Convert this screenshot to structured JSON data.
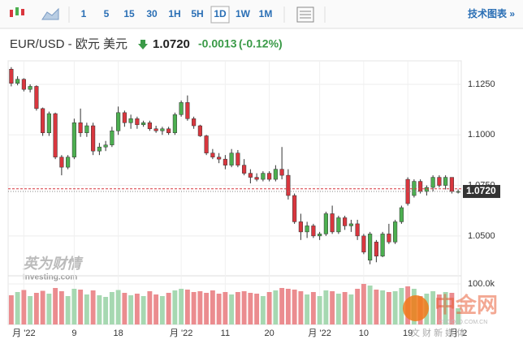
{
  "toolbar": {
    "intervals": [
      "1",
      "5",
      "15",
      "30",
      "1H",
      "5H",
      "1D",
      "1W",
      "1M"
    ],
    "selected": "1D",
    "chart_link": "技术图表 »"
  },
  "header": {
    "symbol": "EUR/USD - 欧元 美元",
    "change": "-0.0013",
    "change_pct": "(-0.12%)"
  },
  "watermarks": {
    "investing_cn": "英为财情",
    "investing": "Investing.com",
    "cngold": "中金网",
    "cngold_url": "CNGOLD.COM.CN",
    "cngold_media": "文 财 新 媒 体"
  },
  "chart_data": {
    "type": "candlestick",
    "up_color": "#4caf50",
    "down_color": "#d9363e",
    "volume_up_color": "#a6d8b1",
    "volume_down_color": "#eb8c8f",
    "ylim": [
      1.0343,
      1.1326
    ],
    "yticks": [
      {
        "value": 1.125,
        "label": "1.1250"
      },
      {
        "value": 1.1,
        "label": "1.1000"
      },
      {
        "value": 1.075,
        "label": "1.0750"
      },
      {
        "value": 1.05,
        "label": "1.0500"
      }
    ],
    "volume_ylim": [
      0,
      110000
    ],
    "volume_yticks": [
      {
        "value": 100000,
        "label": "100.0k"
      }
    ],
    "last": {
      "value": 1.072,
      "label": "1.0720"
    },
    "prev_close": 1.0733,
    "grid": true,
    "categories": [
      null,
      null,
      "月 '22",
      null,
      null,
      null,
      null,
      null,
      null,
      null,
      "9",
      null,
      null,
      null,
      null,
      null,
      null,
      "18",
      null,
      null,
      null,
      null,
      null,
      null,
      null,
      null,
      null,
      "月 '22",
      null,
      null,
      null,
      null,
      null,
      null,
      "11",
      null,
      null,
      null,
      null,
      null,
      null,
      "20",
      null,
      null,
      null,
      null,
      null,
      null,
      null,
      "月 '22",
      null,
      null,
      null,
      null,
      null,
      null,
      "10",
      null,
      null,
      null,
      null,
      null,
      null,
      "19",
      null,
      null,
      null,
      null,
      null,
      null,
      null,
      "月 '2"
    ],
    "ohlc": [
      [
        1.1325,
        1.1335,
        1.124,
        1.1255
      ],
      [
        1.1255,
        1.129,
        1.1245,
        1.1275
      ],
      [
        1.1275,
        1.128,
        1.1215,
        1.1225
      ],
      [
        1.1225,
        1.125,
        1.121,
        1.124
      ],
      [
        1.124,
        1.1245,
        1.112,
        1.113
      ],
      [
        1.113,
        1.1135,
        1.0995,
        1.101
      ],
      [
        1.101,
        1.1115,
        1.0995,
        1.1105
      ],
      [
        1.1105,
        1.111,
        1.088,
        1.089
      ],
      [
        1.089,
        1.09,
        1.08,
        1.084
      ],
      [
        1.084,
        1.09,
        1.083,
        1.089
      ],
      [
        1.089,
        1.108,
        1.088,
        1.106
      ],
      [
        1.106,
        1.113,
        1.099,
        1.101
      ],
      [
        1.101,
        1.106,
        1.099,
        1.1045
      ],
      [
        1.1045,
        1.106,
        1.09,
        1.092
      ],
      [
        1.092,
        1.096,
        1.09,
        1.094
      ],
      [
        1.094,
        1.097,
        1.092,
        1.095
      ],
      [
        1.095,
        1.104,
        1.094,
        1.102
      ],
      [
        1.102,
        1.114,
        1.1,
        1.111
      ],
      [
        1.111,
        1.112,
        1.104,
        1.106
      ],
      [
        1.106,
        1.11,
        1.103,
        1.108
      ],
      [
        1.108,
        1.109,
        1.103,
        1.105
      ],
      [
        1.105,
        1.107,
        1.104,
        1.106
      ],
      [
        1.106,
        1.107,
        1.102,
        1.103
      ],
      [
        1.103,
        1.1045,
        1.101,
        1.102
      ],
      [
        1.102,
        1.104,
        1.1,
        1.103
      ],
      [
        1.103,
        1.104,
        1.1,
        1.101
      ],
      [
        1.101,
        1.111,
        1.1,
        1.11
      ],
      [
        1.11,
        1.117,
        1.109,
        1.116
      ],
      [
        1.116,
        1.1195,
        1.107,
        1.108
      ],
      [
        1.108,
        1.109,
        1.103,
        1.1045
      ],
      [
        1.1045,
        1.105,
        1.099,
        1.0995
      ],
      [
        1.0995,
        1.1,
        1.09,
        1.091
      ],
      [
        1.091,
        1.093,
        1.088,
        1.089
      ],
      [
        1.089,
        1.091,
        1.086,
        1.088
      ],
      [
        1.088,
        1.09,
        1.083,
        1.085
      ],
      [
        1.085,
        1.093,
        1.084,
        1.091
      ],
      [
        1.091,
        1.0925,
        1.084,
        1.085
      ],
      [
        1.085,
        1.088,
        1.08,
        1.081
      ],
      [
        1.081,
        1.083,
        1.076,
        1.079
      ],
      [
        1.079,
        1.081,
        1.077,
        1.078
      ],
      [
        1.078,
        1.082,
        1.077,
        1.081
      ],
      [
        1.081,
        1.082,
        1.077,
        1.078
      ],
      [
        1.078,
        1.085,
        1.077,
        1.083
      ],
      [
        1.083,
        1.094,
        1.078,
        1.08
      ],
      [
        1.08,
        1.083,
        1.068,
        1.07
      ],
      [
        1.07,
        1.071,
        1.056,
        1.057
      ],
      [
        1.057,
        1.061,
        1.048,
        1.052
      ],
      [
        1.052,
        1.057,
        1.049,
        1.055
      ],
      [
        1.055,
        1.056,
        1.049,
        1.05
      ],
      [
        1.05,
        1.052,
        1.048,
        1.051
      ],
      [
        1.051,
        1.062,
        1.05,
        1.061
      ],
      [
        1.061,
        1.065,
        1.051,
        1.052
      ],
      [
        1.052,
        1.06,
        1.051,
        1.059
      ],
      [
        1.059,
        1.06,
        1.053,
        1.055
      ],
      [
        1.055,
        1.058,
        1.052,
        1.056
      ],
      [
        1.056,
        1.058,
        1.048,
        1.05
      ],
      [
        1.05,
        1.051,
        1.041,
        1.042
      ],
      [
        1.038,
        1.052,
        1.036,
        1.051
      ],
      [
        1.047,
        1.048,
        1.037,
        1.04
      ],
      [
        1.04,
        1.052,
        1.0395,
        1.051
      ],
      [
        1.051,
        1.056,
        1.046,
        1.047
      ],
      [
        1.047,
        1.058,
        1.046,
        1.057
      ],
      [
        1.057,
        1.065,
        1.056,
        1.064
      ],
      [
        1.078,
        1.079,
        1.065,
        1.066
      ],
      [
        1.07,
        1.078,
        1.069,
        1.077
      ],
      [
        1.077,
        1.078,
        1.071,
        1.072
      ],
      [
        1.072,
        1.075,
        1.07,
        1.074
      ],
      [
        1.074,
        1.08,
        1.072,
        1.079
      ],
      [
        1.079,
        1.08,
        1.074,
        1.075
      ],
      [
        1.075,
        1.08,
        1.073,
        1.079
      ],
      [
        1.079,
        1.079,
        1.071,
        1.072
      ],
      [
        1.072,
        1.073,
        1.071,
        1.072
      ]
    ],
    "volume": [
      72000,
      80000,
      85000,
      70000,
      78000,
      83000,
      76000,
      90000,
      82000,
      70000,
      88000,
      86000,
      74000,
      84000,
      72000,
      68000,
      80000,
      85000,
      78000,
      72000,
      76000,
      70000,
      82000,
      74000,
      70000,
      78000,
      84000,
      88000,
      86000,
      80000,
      82000,
      78000,
      84000,
      76000,
      80000,
      74000,
      80000,
      82000,
      78000,
      76000,
      70000,
      80000,
      84000,
      90000,
      88000,
      86000,
      82000,
      74000,
      80000,
      70000,
      84000,
      82000,
      76000,
      80000,
      74000,
      88000,
      100000,
      96000,
      86000,
      84000,
      80000,
      82000,
      90000,
      94000,
      88000,
      70000,
      76000,
      82000,
      74000,
      80000,
      78000,
      40000
    ]
  }
}
